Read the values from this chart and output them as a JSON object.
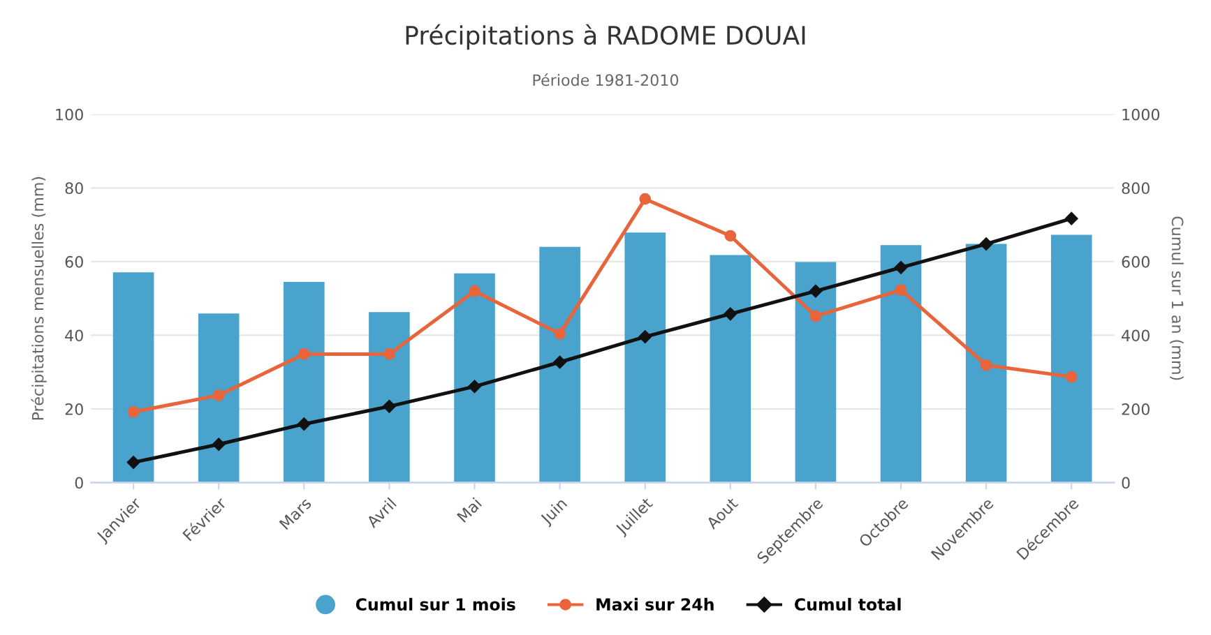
{
  "chart_data": {
    "type": "bar",
    "title": "Précipitations à RADOME DOUAI",
    "subtitle": "Période 1981-2010",
    "ylabel": "Précipitations mensuelles (mm)",
    "y2label": "Cumul sur 1 an (mm)",
    "categories": [
      "Janvier",
      "Février",
      "Mars",
      "Avril",
      "Mai",
      "Juin",
      "Juillet",
      "Aout",
      "Septembre",
      "Octobre",
      "Novembre",
      "Décembre"
    ],
    "series": [
      {
        "name": "Cumul sur 1 mois",
        "color": "#4aa3cc",
        "values": [
          57.1,
          45.9,
          54.5,
          46.3,
          56.8,
          64.0,
          67.9,
          61.8,
          59.9,
          64.5,
          64.8,
          67.3
        ]
      },
      {
        "name": "Maxi sur 24h",
        "type": "line",
        "color": "#e8643a",
        "marker": "circle",
        "values": [
          19.2,
          23.7,
          34.9,
          34.9,
          52.0,
          40.4,
          77.0,
          67.0,
          45.2,
          52.3,
          31.9,
          28.7
        ]
      },
      {
        "name": "Cumul total",
        "type": "line",
        "axis": "y2",
        "color": "#111111",
        "marker": "diamond",
        "values": [
          55,
          104,
          159,
          207,
          261,
          327,
          396,
          458,
          520,
          584,
          648,
          717
        ]
      }
    ],
    "ylim": [
      0,
      100
    ],
    "yticks": [
      0,
      20,
      40,
      60,
      80,
      100
    ],
    "y2lim": [
      0,
      1000
    ],
    "y2ticks": [
      0,
      200,
      400,
      600,
      800,
      1000
    ],
    "grid": "y",
    "legend": "bottom"
  }
}
